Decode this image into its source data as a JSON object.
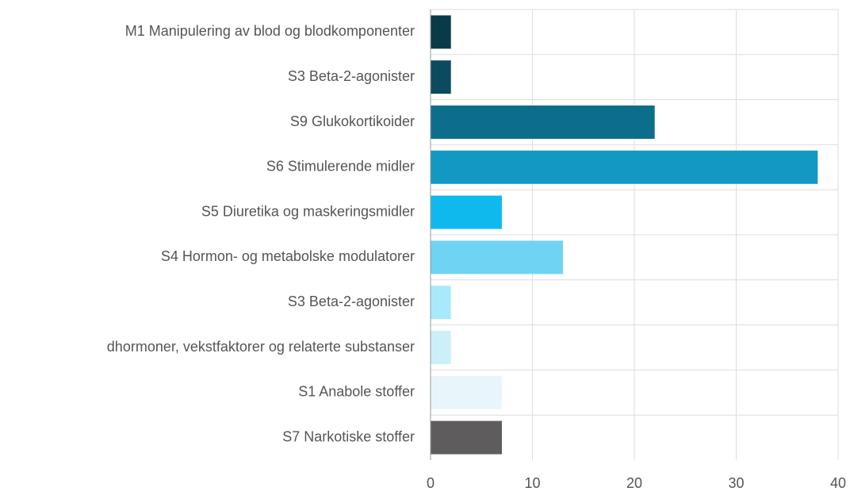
{
  "chart_data": {
    "type": "bar",
    "orientation": "horizontal",
    "categories": [
      "M1 Manipulering av blod og blodkomponenter",
      "S3 Beta-2-agonister",
      "S9 Glukokortikoider",
      "S6 Stimulerende midler",
      "S5 Diuretika og maskeringsmidler",
      "S4 Hormon- og metabolske modulatorer",
      "S3 Beta-2-agonister",
      "dhormoner, vekstfaktorer og relaterte substanser",
      "S1 Anabole stoffer",
      "S7 Narkotiske stoffer"
    ],
    "values": [
      2,
      2,
      22,
      38,
      7,
      13,
      2,
      2,
      7,
      7
    ],
    "colors": [
      "#093a48",
      "#0c4a5f",
      "#0d6e8b",
      "#1398c3",
      "#0fb9ee",
      "#6fd4f3",
      "#a8eafb",
      "#ccf0f9",
      "#e8f5fa",
      "#5e5c5d"
    ],
    "xlim": [
      0,
      40
    ],
    "xticks": [
      0,
      10,
      20,
      30,
      40
    ],
    "grid": true
  }
}
